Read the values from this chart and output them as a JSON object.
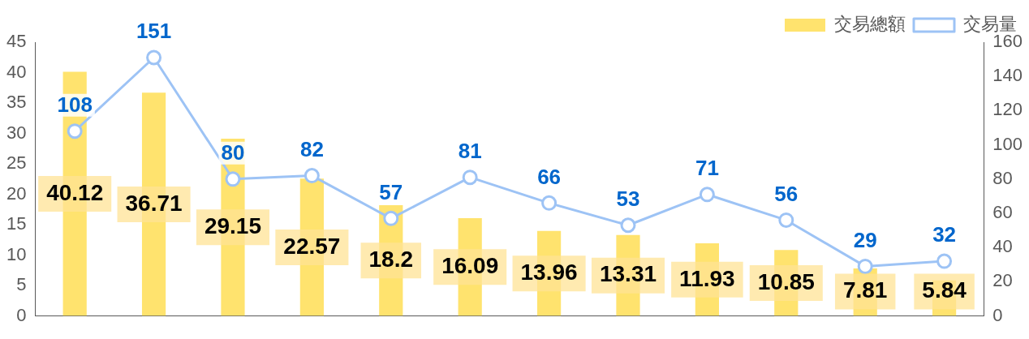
{
  "chart_data": {
    "type": "bar",
    "categories": [
      null,
      null,
      null,
      null,
      null,
      null,
      null,
      null,
      null,
      null,
      null,
      null
    ],
    "series": [
      {
        "name": "交易總額",
        "color": "#ffe36e",
        "values": [
          40.12,
          36.71,
          29.15,
          22.57,
          18.2,
          16.09,
          13.96,
          13.31,
          11.93,
          10.85,
          7.81,
          5.84
        ]
      },
      {
        "name": "交易量",
        "type": "line",
        "axis": "y2",
        "color": "#9dc3f5",
        "marker": "circle",
        "values": [
          108,
          151,
          80,
          82,
          57,
          81,
          66,
          53,
          71,
          56,
          29,
          32
        ]
      }
    ],
    "ylim": [
      0,
      45
    ],
    "yticks": [
      0,
      5,
      10,
      15,
      20,
      25,
      30,
      35,
      40,
      45
    ],
    "y2lim": [
      0,
      160
    ],
    "y2ticks": [
      0,
      20,
      40,
      60,
      80,
      100,
      120,
      140,
      160
    ],
    "grid": false,
    "legend": "top right",
    "data_labels": true
  }
}
